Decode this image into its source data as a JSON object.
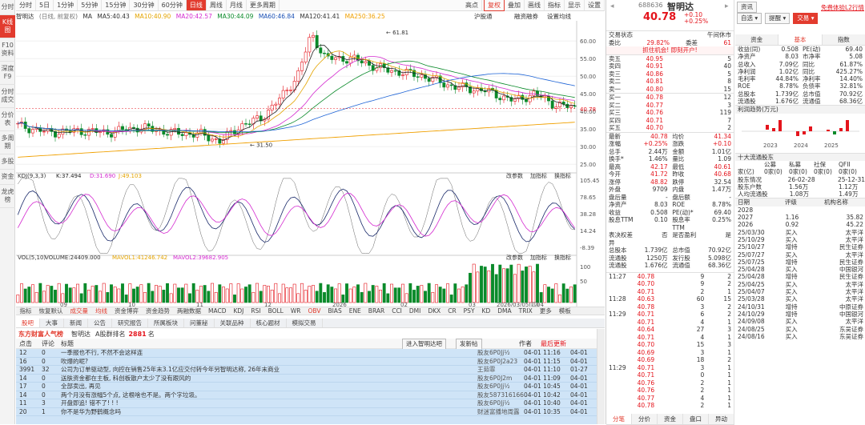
{
  "rail": [
    "分时",
    "K线图",
    "F10资料",
    "深度F9",
    "分时成交",
    "分价表",
    "多周期",
    "多股",
    "资金",
    "龙虎榜"
  ],
  "toolbar": [
    "分时",
    "5日",
    "1分钟",
    "5分钟",
    "15分钟",
    "30分钟",
    "60分钟",
    "日线",
    "周线",
    "月线",
    "更多周期",
    "",
    "",
    "",
    "",
    "",
    "",
    "",
    "",
    "",
    "",
    "叠加",
    "画线",
    "指标",
    "显示",
    "设置"
  ],
  "toolbar_extra": {
    "high": "高点",
    "box": "复权",
    "selected": "日线"
  },
  "chart_header": {
    "name": "智明达",
    "mode": "(日线, 前复权)",
    "ma": "MA",
    "ma5": "MA5:40.43",
    "ma10": "MA10:40.90",
    "ma20": "MA20:42.57",
    "ma30": "MA30:44.09",
    "ma60": "MA60:46.84",
    "ma120": "MA120:41.41",
    "ma250": "MA250:36.25",
    "right1": "沪股通",
    "right2": "融资融券",
    "right3": "设置均线"
  },
  "colors": {
    "up": "#e4141c",
    "down": "#0a8a2a",
    "ma5": "#222222",
    "ma10": "#e4a400",
    "ma20": "#d42ad0",
    "ma30": "#0a8a2a",
    "ma60": "#1e64d6",
    "ma120": "#222222",
    "ma250": "#f0a000"
  },
  "chart_data": {
    "type": "candlestick",
    "price_axis": [
      "60.00",
      "55.00",
      "50.00",
      "45.00",
      "40.00",
      "35.00",
      "30.00",
      "25.00"
    ],
    "current": "40.78",
    "high_label": "61.81",
    "low_label": "31.50",
    "x_labels": [
      "09",
      "10",
      "11",
      "12",
      "2026",
      "02",
      "03",
      "04"
    ],
    "kdj_label": "KDJ(9,3,3)",
    "kdj_k": "K:37.494",
    "kdj_d": "D:31.690",
    "kdj_j": "J:49.103",
    "kdj_axis": [
      "105.45",
      "78.65",
      "38.28",
      "14.24",
      "-8.39"
    ],
    "vol_label": "VOL(5,10)",
    "vol_val": "VOLUME:24409.000",
    "vol_ma1": "MAVOL1:41246.742",
    "vol_ma2": "MAVOL2:39682.905",
    "vol_axis": [
      "100",
      "50"
    ],
    "date": "2026/03/05(四)"
  },
  "subtools": [
    "改参数",
    "加指标",
    "换指标"
  ],
  "indicator_tabs": [
    "指标",
    "恢复默认",
    "成交量",
    "均线",
    "资金博弈",
    "资金趋势",
    "两融数据",
    "MACD",
    "KDJ",
    "RSI",
    "BOLL",
    "WR",
    "OBV",
    "BIAS",
    "ENE",
    "BRAR",
    "CCI",
    "DMI",
    "DKX",
    "CR",
    "PSY",
    "KD",
    "DMA",
    "TRIX",
    "更多",
    "模板"
  ],
  "forum_tabs": [
    "股吧",
    "大事",
    "新闻",
    "公告",
    "研究报告",
    "所属板块",
    "问董秘",
    "关联品种",
    "核心题材",
    "模拟交易"
  ],
  "forum_head": {
    "brand": "东方财富人气榜",
    "stock": "智明达",
    "rank_label": "A股群排名",
    "rank": "2881",
    "unit": "名",
    "enter": "进入智明达吧",
    "post": "发新帖"
  },
  "forum_cols": {
    "clicks": "点击",
    "reply": "评论",
    "title": "标题",
    "author": "作者",
    "latest": "最后更新"
  },
  "posts": [
    {
      "c": "12",
      "r": "0",
      "t": "一季报也不行, 不然不会这样连",
      "a": "股友6P0Jj½",
      "u": "04-01 11:16",
      "d": "04-01"
    },
    {
      "c": "16",
      "r": "0",
      "t": "吹爆的呢?",
      "a": "股友6P0J2a23",
      "u": "04-01 11:15",
      "d": "04-01"
    },
    {
      "c": "3991",
      "r": "32",
      "t": "公司为订单驱动型, 向控在销售25年末3.1亿应交付转今年另智明达称, 26年末商业",
      "a": "王茹霏",
      "u": "04-01 11:10",
      "d": "01-27"
    },
    {
      "c": "14",
      "r": "0",
      "t": "送肤资金都在主板, 科创板散户太少了没有跟风的",
      "a": "股友6P0J2m",
      "u": "04-01 11:09",
      "d": "04-01"
    },
    {
      "c": "17",
      "r": "0",
      "t": "全部卖出, 再见",
      "a": "股友6P0Jj½",
      "u": "04-01 10:45",
      "d": "04-01"
    },
    {
      "c": "14",
      "r": "0",
      "t": "两个月没有涨幅5个点, 这根啥也不是。两个字垃圾。",
      "a": "股友5873161663",
      "u": "04-01 10:42",
      "d": "04-01"
    },
    {
      "c": "11",
      "r": "3",
      "t": "开盘即追! 错不了! ! !",
      "a": "股友6P0Jj½",
      "u": "04-01 10:40",
      "d": "04-01"
    },
    {
      "c": "20",
      "r": "1",
      "t": "你不是华为野鹤概念吗",
      "a": "财迷富播地周露",
      "u": "04-01 10:35",
      "d": "04-01"
    }
  ],
  "quote": {
    "code": "688636",
    "name": "智明达",
    "price": "40.78",
    "change": "+0.10",
    "pct": "+0.25%",
    "status_l": "交易状态",
    "status_r": "午间休市",
    "wb_l": "委比",
    "wb": "29.82%",
    "wc_l": "委差",
    "wc": "61",
    "ad": "抓住机会! 即刻开户!",
    "sells": [
      [
        "卖五",
        "40.95",
        "5"
      ],
      [
        "卖四",
        "40.91",
        "40"
      ],
      [
        "卖三",
        "40.86",
        "5"
      ],
      [
        "卖二",
        "40.81",
        "8"
      ],
      [
        "卖一",
        "40.80",
        "15"
      ]
    ],
    "buys": [
      [
        "买一",
        "40.78",
        "12"
      ],
      [
        "买二",
        "40.77",
        "3"
      ],
      [
        "买三",
        "40.76",
        "119"
      ],
      [
        "买四",
        "40.71",
        "7"
      ],
      [
        "买五",
        "40.70",
        "2"
      ]
    ],
    "stats": [
      [
        "最新",
        "40.78",
        "均价",
        "41.34"
      ],
      [
        "涨幅",
        "+0.25%",
        "涨跌",
        "+0.10"
      ],
      [
        "总手",
        "2.44万",
        "金额",
        "1.01亿"
      ],
      [
        "换手*",
        "1.46%",
        "量比",
        "1.09"
      ],
      [
        "最高",
        "42.17",
        "最低",
        "40.61"
      ],
      [
        "今开",
        "41.72",
        "昨收",
        "40.68"
      ],
      [
        "涨停",
        "48.82",
        "跌停",
        "32.54"
      ],
      [
        "外盘",
        "9709",
        "内盘",
        "1.47万"
      ],
      [
        "盘后量",
        "-",
        "盘后额",
        "-"
      ],
      [
        "净资产",
        "8.03",
        "ROE",
        "8.78%"
      ],
      [
        "收益",
        "0.508",
        "PE(动)*",
        "69.40"
      ],
      [
        "股息TTM",
        "0.10",
        "股息率TTM",
        "0.25%"
      ],
      [
        "表决权差异",
        "否",
        "是否盈利",
        "是"
      ],
      [
        "总股本",
        "1.739亿",
        "总市值",
        "70.92亿"
      ],
      [
        "流通股",
        "1250万",
        "发行股",
        "5.098亿"
      ],
      [
        "流通股",
        "1.676亿",
        "流通值",
        "68.36亿"
      ]
    ],
    "ticks": [
      [
        "11:27",
        "40.78",
        "9",
        "2"
      ],
      [
        "",
        "40.70",
        "9",
        "2"
      ],
      [
        "",
        "40.71",
        "2",
        "1"
      ],
      [
        "11:28",
        "40.63",
        "60",
        "15"
      ],
      [
        "",
        "40.78",
        "3",
        "2"
      ],
      [
        "11:29",
        "40.71",
        "6",
        "2"
      ],
      [
        "",
        "40.71",
        "4",
        "1"
      ],
      [
        "",
        "40.64",
        "27",
        "3"
      ],
      [
        "",
        "40.71",
        "4",
        "1"
      ],
      [
        "",
        "40.70",
        "15",
        "3"
      ],
      [
        "",
        "40.69",
        "3",
        "1"
      ],
      [
        "",
        "40.69",
        "18",
        "2"
      ],
      [
        "11:29",
        "40.71",
        "3",
        "1"
      ],
      [
        "",
        "40.71",
        "0",
        "1"
      ],
      [
        "",
        "40.76",
        "2",
        "1"
      ],
      [
        "",
        "40.76",
        "2",
        "1"
      ],
      [
        "",
        "40.77",
        "4",
        "1"
      ],
      [
        "",
        "40.78",
        "2",
        "1"
      ]
    ],
    "bottom_tabs": [
      "分笔",
      "分价",
      "资金",
      "盘口",
      "异动"
    ]
  },
  "fin": {
    "top": [
      "资讯",
      "自选",
      "提醒",
      "交易"
    ],
    "link": "免费体验L2行情",
    "tabs": [
      "资金",
      "基本",
      "指数"
    ],
    "basic": [
      [
        "收益(同)",
        "0.508",
        "PE(动)",
        "69.40"
      ],
      [
        "净资产",
        "8.03",
        "市净率",
        "5.08"
      ],
      [
        "总收入",
        "7.09亿",
        "同比",
        "61.87%"
      ],
      [
        "净利润",
        "1.02亿",
        "同比",
        "425.27%"
      ],
      [
        "毛利率",
        "44.84%",
        "净利率",
        "14.40%"
      ],
      [
        "ROE",
        "8.78%",
        "负债率",
        "32.81%"
      ],
      [
        "总股本",
        "1.739亿",
        "总市值",
        "70.92亿"
      ],
      [
        "流通股",
        "1.676亿",
        "流通值",
        "68.36亿"
      ]
    ],
    "profit_title": "利润趋势(万元)",
    "profit_years": [
      "2023",
      "2024",
      "2025"
    ],
    "holder_title": "十大流通股东",
    "hcols": [
      "公募",
      "私募",
      "社保",
      "QFII"
    ],
    "hrows": [
      [
        "家(亿)",
        "0家(0)",
        "0家(0)",
        "0家(0)",
        "0家(0)"
      ],
      [
        "股东情况",
        "",
        "26-02-28",
        "",
        "25-12-31"
      ],
      [
        "股东户数",
        "",
        "1.56万",
        "",
        "1.12万"
      ],
      [
        "人均流通股",
        "",
        "1.08万",
        "",
        "1.49万"
      ]
    ],
    "rating_title": "机构评级",
    "rcols": [
      "日期",
      "评级",
      "机构名称"
    ],
    "ratings": [
      [
        "2028",
        "",
        "",
        "",
        ""
      ],
      [
        "2027",
        "1.16",
        "35.82"
      ],
      [
        "2026",
        "0.92",
        "45.22"
      ],
      [
        "25/03/30",
        "买入",
        "太平洋"
      ],
      [
        "25/10/29",
        "买入",
        "太平洋"
      ],
      [
        "25/10/27",
        "增持",
        "民生证券"
      ],
      [
        "25/07/27",
        "买入",
        "太平洋"
      ],
      [
        "25/07/25",
        "增持",
        "民生证券"
      ],
      [
        "25/04/28",
        "买入",
        "中国银河"
      ],
      [
        "25/04/28",
        "增持",
        "民生证券"
      ],
      [
        "25/04/25",
        "买入",
        "太平洋"
      ],
      [
        "25/04/07",
        "买入",
        "太平洋"
      ],
      [
        "25/03/28",
        "买入",
        "太平洋"
      ],
      [
        "24/10/31",
        "增持",
        "中原证券"
      ],
      [
        "24/10/29",
        "增持",
        "中国银河"
      ],
      [
        "24/09/08",
        "买入",
        "太平洋"
      ],
      [
        "24/08/25",
        "买入",
        "东吴证券"
      ],
      [
        "24/08/16",
        "买入",
        "东吴证券"
      ]
    ]
  }
}
